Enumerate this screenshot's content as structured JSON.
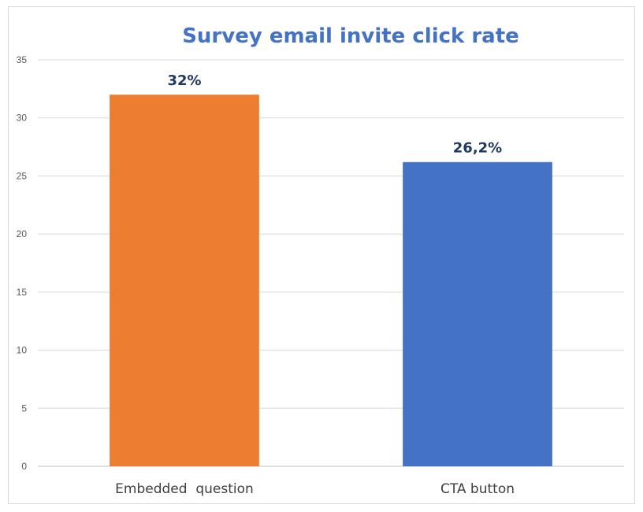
{
  "chart_data": {
    "type": "bar",
    "title": "Survey email invite click rate",
    "xlabel": "",
    "ylabel": "",
    "categories": [
      "Embedded  question",
      "CTA button"
    ],
    "values": [
      32,
      26.2
    ],
    "data_labels": [
      "32%",
      "26,2%"
    ],
    "bar_colors": [
      "#ED7D31",
      "#4472C4"
    ],
    "ylim": [
      0,
      35
    ],
    "yticks": [
      0,
      5,
      10,
      15,
      20,
      25,
      30,
      35
    ],
    "grid": true,
    "legend": "none",
    "title_color": "#4472C4",
    "data_label_color": "#1F3864"
  }
}
